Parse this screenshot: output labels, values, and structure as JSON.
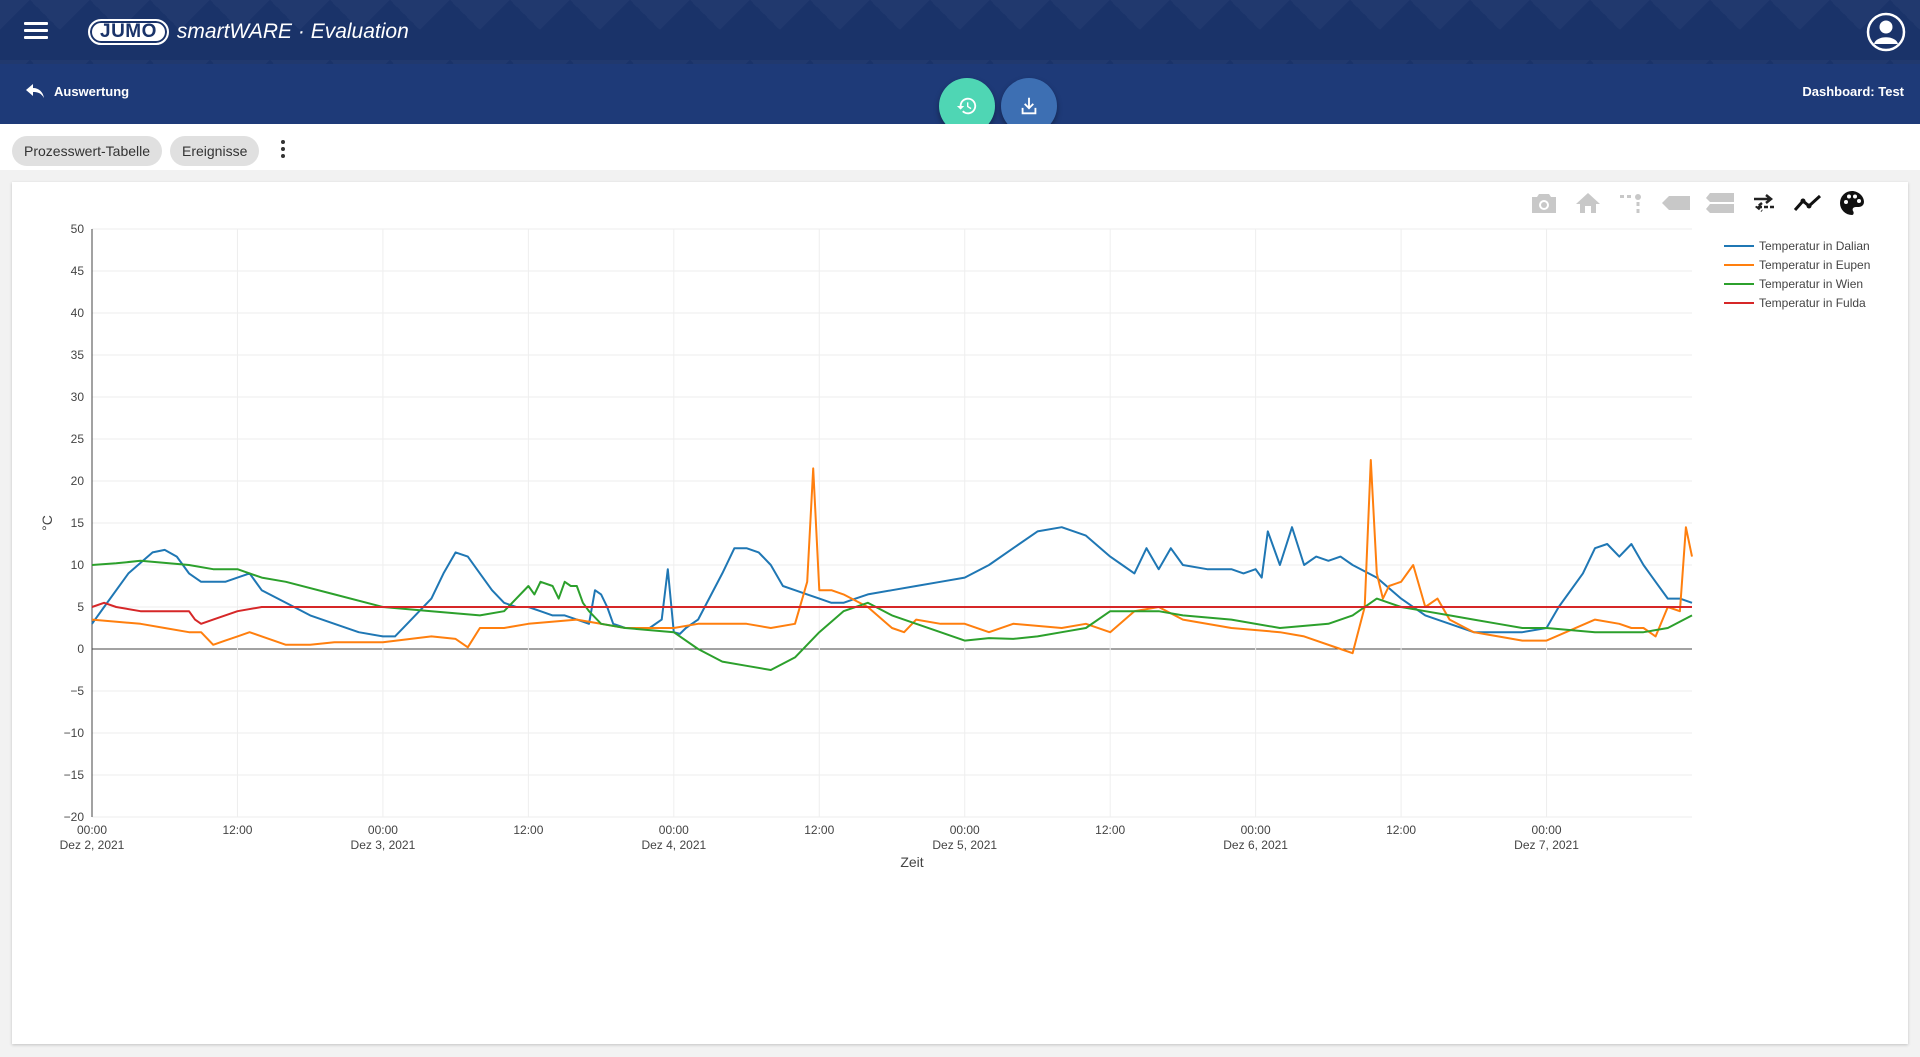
{
  "header": {
    "logo_badge": "JUMO",
    "logo_text": "smartWARE · Evaluation"
  },
  "subheader": {
    "back_label": "Auswertung",
    "dashboard_title": "Dashboard: Test"
  },
  "tabs": {
    "chip1": "Prozesswert-Tabelle",
    "chip2": "Ereignisse"
  },
  "icons": {
    "menu": "menu-icon",
    "user": "user-icon",
    "back": "back-arrow-icon",
    "history": "history-icon",
    "download": "download-icon",
    "more": "more-vert-icon",
    "modebar": [
      "camera-icon",
      "home-icon",
      "spike-lines-icon",
      "hover-closest-icon",
      "hover-compare-icon",
      "toggle-hover-icon",
      "line-icon",
      "palette-icon"
    ]
  },
  "colors": {
    "header_bg": "#1a3369",
    "subheader_bg": "#1e3a78",
    "fab_history": "#4fd6b4",
    "fab_download": "#3d6fb3"
  },
  "chart_data": {
    "type": "line",
    "xlabel": "Zeit",
    "ylabel": "°C",
    "ylim": [
      -20,
      50
    ],
    "yticks": [
      50,
      45,
      40,
      35,
      30,
      25,
      20,
      15,
      10,
      5,
      0,
      -5,
      -10,
      -15,
      -20
    ],
    "ytick_labels": [
      "50",
      "45",
      "40",
      "35",
      "30",
      "25",
      "20",
      "15",
      "10",
      "5",
      "0",
      "−5",
      "−10",
      "−15",
      "−20"
    ],
    "x_range_hours": [
      0,
      132
    ],
    "xticks": [
      {
        "h": 0,
        "time": "00:00",
        "date": "Dez 2, 2021"
      },
      {
        "h": 12,
        "time": "12:00",
        "date": ""
      },
      {
        "h": 24,
        "time": "00:00",
        "date": "Dez 3, 2021"
      },
      {
        "h": 36,
        "time": "12:00",
        "date": ""
      },
      {
        "h": 48,
        "time": "00:00",
        "date": "Dez 4, 2021"
      },
      {
        "h": 60,
        "time": "12:00",
        "date": ""
      },
      {
        "h": 72,
        "time": "00:00",
        "date": "Dez 5, 2021"
      },
      {
        "h": 84,
        "time": "12:00",
        "date": ""
      },
      {
        "h": 96,
        "time": "00:00",
        "date": "Dez 6, 2021"
      },
      {
        "h": 108,
        "time": "12:00",
        "date": ""
      },
      {
        "h": 120,
        "time": "00:00",
        "date": "Dez 7, 2021"
      }
    ],
    "legend_position": "top-right",
    "grid": true,
    "series": [
      {
        "name": "Temperatur in Dalian",
        "color": "#1f77b4",
        "x": [
          0,
          1,
          3,
          5,
          6,
          7,
          8,
          9,
          10,
          11,
          12,
          13,
          14,
          16,
          18,
          20,
          22,
          24,
          25,
          26,
          28,
          29,
          30,
          31,
          32,
          33,
          34,
          35,
          36,
          37,
          38,
          39,
          40,
          41,
          41.5,
          42,
          42.5,
          43,
          44,
          45,
          46,
          47,
          47.5,
          48,
          48.5,
          49,
          50,
          52,
          53,
          54,
          55,
          56,
          57,
          58,
          59,
          60,
          61,
          62,
          63,
          64,
          66,
          68,
          70,
          72,
          74,
          76,
          78,
          80,
          82,
          84,
          85,
          86,
          87,
          88,
          89,
          90,
          92,
          94,
          95,
          96,
          96.5,
          97,
          98,
          99,
          100,
          101,
          102,
          103,
          104,
          106,
          108,
          110,
          112,
          114,
          116,
          118,
          120,
          121,
          123,
          124,
          125,
          126,
          127,
          128,
          129,
          130,
          131,
          132
        ],
        "y": [
          3,
          5,
          9,
          11.5,
          11.8,
          11,
          9,
          8,
          8,
          8,
          8.5,
          9,
          7,
          5.5,
          4,
          3,
          2,
          1.5,
          1.5,
          3,
          6,
          9,
          11.5,
          11,
          9,
          7,
          5.5,
          5,
          5,
          4.5,
          4,
          4,
          3.5,
          3,
          7,
          6.5,
          5,
          3,
          2.5,
          2.5,
          2.5,
          3.5,
          9.5,
          2,
          1.8,
          2.5,
          3.5,
          9,
          12,
          12,
          11.5,
          10,
          7.5,
          7,
          6.5,
          6,
          5.5,
          5.5,
          6,
          6.5,
          7,
          7.5,
          8,
          8.5,
          10,
          12,
          14,
          14.5,
          13.5,
          11,
          10,
          9,
          12,
          9.5,
          12,
          10,
          9.5,
          9.5,
          9,
          9.5,
          8.5,
          14,
          10,
          14.5,
          10,
          11,
          10.5,
          11,
          10,
          8.5,
          6,
          4,
          3,
          2,
          2,
          2,
          2.5,
          5,
          9,
          12,
          12.5,
          11,
          12.5,
          10,
          8,
          6,
          6,
          5.5
        ]
      },
      {
        "name": "Temperatur in Eupen",
        "color": "#ff7f0e",
        "x": [
          0,
          4,
          6,
          8,
          9,
          10,
          11,
          12,
          13,
          16,
          18,
          20,
          24,
          28,
          30,
          31,
          32,
          34,
          36,
          40,
          44,
          48,
          50,
          54,
          56,
          58,
          59,
          59.5,
          60,
          61,
          62,
          64,
          66,
          67,
          68,
          70,
          72,
          74,
          76,
          80,
          82,
          84,
          86,
          88,
          90,
          94,
          98,
          100,
          103,
          104,
          105,
          105.5,
          106,
          106.5,
          107,
          108,
          109,
          110,
          111,
          112,
          114,
          116,
          118,
          120,
          124,
          126,
          127,
          128,
          129,
          130,
          131,
          131.5,
          132
        ],
        "y": [
          3.5,
          3,
          2.5,
          2,
          2,
          0.5,
          1,
          1.5,
          2,
          0.5,
          0.5,
          0.8,
          0.8,
          1.5,
          1.2,
          0.2,
          2.5,
          2.5,
          3,
          3.5,
          2.5,
          2.5,
          3,
          3,
          2.5,
          3,
          8,
          21.5,
          7,
          7,
          6.5,
          5,
          2.5,
          2,
          3.5,
          3,
          3,
          2,
          3,
          2.5,
          3,
          2,
          4.5,
          5,
          3.5,
          2.5,
          2,
          1.5,
          0,
          -0.5,
          5,
          22.5,
          9,
          6,
          7.5,
          8,
          10,
          5,
          6,
          3.5,
          2,
          1.5,
          1,
          1,
          3.5,
          3,
          2.5,
          2.5,
          1.5,
          5,
          4.5,
          14.5,
          11
        ]
      },
      {
        "name": "Temperatur in Wien",
        "color": "#2ca02c",
        "x": [
          0,
          2,
          4,
          8,
          10,
          12,
          14,
          16,
          20,
          24,
          28,
          32,
          34,
          36,
          36.5,
          37,
          38,
          38.5,
          39,
          39.5,
          40,
          40.5,
          41,
          42,
          44,
          48,
          50,
          52,
          54,
          56,
          58,
          60,
          62,
          64,
          66,
          68,
          70,
          72,
          74,
          76,
          78,
          80,
          82,
          84,
          86,
          88,
          90,
          94,
          98,
          102,
          104,
          106,
          108,
          110,
          112,
          114,
          116,
          118,
          120,
          124,
          128,
          130,
          132
        ],
        "y": [
          10,
          10.2,
          10.5,
          10,
          9.5,
          9.5,
          8.5,
          8,
          6.5,
          5,
          4.5,
          4,
          4.5,
          7.5,
          6.5,
          8,
          7.5,
          6,
          8,
          7.5,
          7.5,
          5.5,
          4.5,
          3,
          2.5,
          2,
          0,
          -1.5,
          -2,
          -2.5,
          -1,
          2,
          4.5,
          5.5,
          4,
          3,
          2,
          1,
          1.3,
          1.2,
          1.5,
          2,
          2.5,
          4.5,
          4.5,
          4.5,
          4,
          3.5,
          2.5,
          3,
          4,
          6,
          5,
          4.5,
          4,
          3.5,
          3,
          2.5,
          2.5,
          2,
          2,
          2.5,
          4
        ]
      },
      {
        "name": "Temperatur in Fulda",
        "color": "#d62728",
        "x": [
          0,
          1,
          2,
          4,
          6,
          8,
          8.5,
          9,
          10,
          12,
          14,
          24,
          48,
          72,
          96,
          120,
          132
        ],
        "y": [
          5,
          5.5,
          5,
          4.5,
          4.5,
          4.5,
          3.5,
          3,
          3.5,
          4.5,
          5,
          5,
          5,
          5,
          5,
          5,
          5
        ]
      }
    ]
  }
}
